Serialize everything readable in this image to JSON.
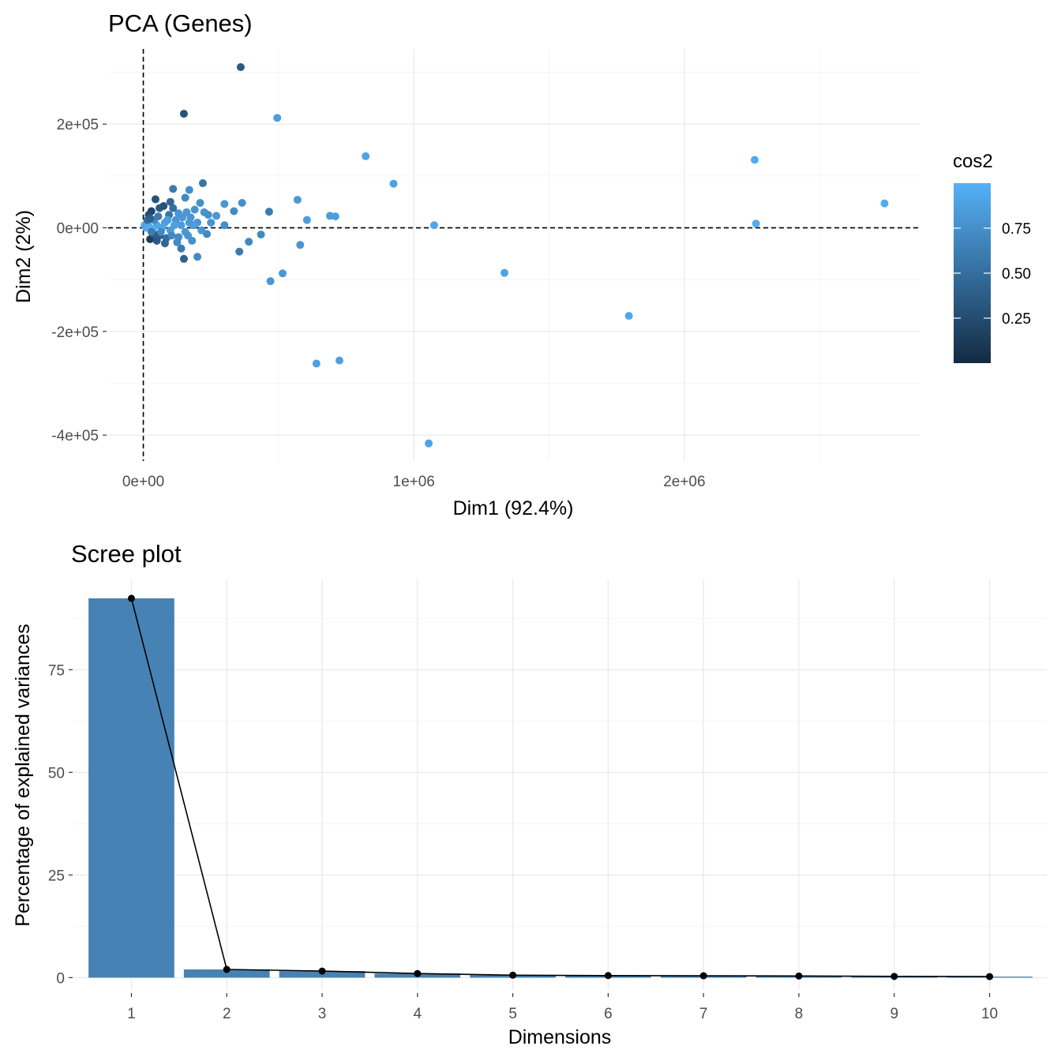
{
  "chart_data": [
    {
      "type": "scatter",
      "title": "PCA (Genes)",
      "xlabel": "Dim1 (92.4%)",
      "ylabel": "Dim2 (2%)",
      "xlim": [
        -130000,
        2870000
      ],
      "ylim": [
        -450000,
        345000
      ],
      "x_ticks": [
        {
          "value": 0,
          "label": "0e+00"
        },
        {
          "value": 1000000,
          "label": "1e+06"
        },
        {
          "value": 2000000,
          "label": "2e+06"
        }
      ],
      "y_ticks": [
        {
          "value": 200000,
          "label": "2e+05"
        },
        {
          "value": 0,
          "label": "0e+00"
        },
        {
          "value": -200000,
          "label": "-2e+05"
        },
        {
          "value": -400000,
          "label": "-4e+05"
        }
      ],
      "reference_lines": {
        "x": 0,
        "y": 0,
        "style": "dashed"
      },
      "grid": true,
      "legend": {
        "title": "cos2",
        "position": "right",
        "type": "colorbar",
        "range": [
          0.0,
          1.0
        ],
        "ticks": [
          {
            "value": 0.25,
            "label": "0.25"
          },
          {
            "value": 0.5,
            "label": "0.50"
          },
          {
            "value": 0.75,
            "label": "0.75"
          }
        ],
        "color_low": "#132B43",
        "color_high": "#56B1F7"
      },
      "points": [
        {
          "x": 360000,
          "y": 310000,
          "cos2": 0.35
        },
        {
          "x": 150000,
          "y": 220000,
          "cos2": 0.3
        },
        {
          "x": 495000,
          "y": 212000,
          "cos2": 0.85
        },
        {
          "x": 822000,
          "y": 138000,
          "cos2": 0.9
        },
        {
          "x": 925000,
          "y": 85000,
          "cos2": 0.88
        },
        {
          "x": 2260000,
          "y": 131000,
          "cos2": 0.95
        },
        {
          "x": 2740000,
          "y": 47000,
          "cos2": 0.95
        },
        {
          "x": 2265000,
          "y": 8000,
          "cos2": 0.95
        },
        {
          "x": 1075000,
          "y": 5000,
          "cos2": 0.92
        },
        {
          "x": 1335000,
          "y": -87000,
          "cos2": 0.9
        },
        {
          "x": 1795000,
          "y": -170000,
          "cos2": 0.92
        },
        {
          "x": 640000,
          "y": -262000,
          "cos2": 0.88
        },
        {
          "x": 725000,
          "y": -256000,
          "cos2": 0.88
        },
        {
          "x": 1055000,
          "y": -416000,
          "cos2": 0.9
        },
        {
          "x": 470000,
          "y": -103000,
          "cos2": 0.8
        },
        {
          "x": 515000,
          "y": -88000,
          "cos2": 0.82
        },
        {
          "x": 580000,
          "y": -33000,
          "cos2": 0.8
        },
        {
          "x": 570000,
          "y": 54000,
          "cos2": 0.82
        },
        {
          "x": 605000,
          "y": 15000,
          "cos2": 0.85
        },
        {
          "x": 690000,
          "y": 23000,
          "cos2": 0.85
        },
        {
          "x": 710000,
          "y": 22000,
          "cos2": 0.86
        },
        {
          "x": 465000,
          "y": 31000,
          "cos2": 0.6
        },
        {
          "x": 435000,
          "y": -13000,
          "cos2": 0.7
        },
        {
          "x": 390000,
          "y": -27000,
          "cos2": 0.7
        },
        {
          "x": 355000,
          "y": -46000,
          "cos2": 0.6
        },
        {
          "x": 365000,
          "y": 48000,
          "cos2": 0.75
        },
        {
          "x": 335000,
          "y": 32000,
          "cos2": 0.72
        },
        {
          "x": 300000,
          "y": 46000,
          "cos2": 0.8
        },
        {
          "x": 300000,
          "y": 5000,
          "cos2": 0.75
        },
        {
          "x": 270000,
          "y": 23000,
          "cos2": 0.8
        },
        {
          "x": 235000,
          "y": -12000,
          "cos2": 0.7
        },
        {
          "x": 220000,
          "y": 86000,
          "cos2": 0.55
        },
        {
          "x": 200000,
          "y": -56000,
          "cos2": 0.72
        },
        {
          "x": 170000,
          "y": 73000,
          "cos2": 0.75
        },
        {
          "x": 155000,
          "y": 58000,
          "cos2": 0.7
        },
        {
          "x": 150000,
          "y": -60000,
          "cos2": 0.4
        },
        {
          "x": 140000,
          "y": -40000,
          "cos2": 0.6
        },
        {
          "x": 110000,
          "y": 75000,
          "cos2": 0.6
        },
        {
          "x": 45000,
          "y": 55000,
          "cos2": 0.3
        },
        {
          "x": 60000,
          "y": 38000,
          "cos2": 0.35
        },
        {
          "x": 75000,
          "y": 42000,
          "cos2": 0.3
        },
        {
          "x": 30000,
          "y": 32000,
          "cos2": 0.2
        },
        {
          "x": 20000,
          "y": 25000,
          "cos2": 0.25
        },
        {
          "x": 15000,
          "y": 10000,
          "cos2": 0.55
        },
        {
          "x": 25000,
          "y": -22000,
          "cos2": 0.15
        },
        {
          "x": 40000,
          "y": -12000,
          "cos2": 0.35
        },
        {
          "x": 60000,
          "y": -15000,
          "cos2": 0.4
        },
        {
          "x": 85000,
          "y": -20000,
          "cos2": 0.5
        },
        {
          "x": 100000,
          "y": -5000,
          "cos2": 0.85
        },
        {
          "x": 120000,
          "y": 15000,
          "cos2": 0.8
        },
        {
          "x": 130000,
          "y": 28000,
          "cos2": 0.8
        },
        {
          "x": 140000,
          "y": 5000,
          "cos2": 0.85
        },
        {
          "x": 155000,
          "y": -8000,
          "cos2": 0.82
        },
        {
          "x": 175000,
          "y": 20000,
          "cos2": 0.8
        },
        {
          "x": 190000,
          "y": 35000,
          "cos2": 0.78
        },
        {
          "x": 210000,
          "y": 48000,
          "cos2": 0.75
        },
        {
          "x": 225000,
          "y": 30000,
          "cos2": 0.78
        },
        {
          "x": 240000,
          "y": 25000,
          "cos2": 0.75
        },
        {
          "x": 200000,
          "y": 10000,
          "cos2": 0.8
        },
        {
          "x": 180000,
          "y": -25000,
          "cos2": 0.75
        },
        {
          "x": 165000,
          "y": -15000,
          "cos2": 0.78
        },
        {
          "x": 125000,
          "y": -28000,
          "cos2": 0.7
        },
        {
          "x": 110000,
          "y": 38000,
          "cos2": 0.5
        },
        {
          "x": 95000,
          "y": 25000,
          "cos2": 0.55
        },
        {
          "x": 80000,
          "y": 10000,
          "cos2": 0.85
        },
        {
          "x": 70000,
          "y": 0,
          "cos2": 0.9
        },
        {
          "x": 50000,
          "y": 5000,
          "cos2": 0.9
        },
        {
          "x": 35000,
          "y": -3000,
          "cos2": 0.95
        },
        {
          "x": 10000,
          "y": 0,
          "cos2": 0.95
        },
        {
          "x": 5000,
          "y": 5000,
          "cos2": 0.9
        },
        {
          "x": 20000,
          "y": 3000,
          "cos2": 0.95
        },
        {
          "x": 40000,
          "y": 15000,
          "cos2": 0.7
        },
        {
          "x": 55000,
          "y": 22000,
          "cos2": 0.6
        },
        {
          "x": 90000,
          "y": 15000,
          "cos2": 0.85
        },
        {
          "x": 105000,
          "y": -15000,
          "cos2": 0.7
        },
        {
          "x": 115000,
          "y": 5000,
          "cos2": 0.88
        },
        {
          "x": 145000,
          "y": 20000,
          "cos2": 0.82
        },
        {
          "x": 160000,
          "y": 30000,
          "cos2": 0.8
        },
        {
          "x": 185000,
          "y": 5000,
          "cos2": 0.85
        },
        {
          "x": 215000,
          "y": -5000,
          "cos2": 0.8
        },
        {
          "x": 250000,
          "y": 10000,
          "cos2": 0.78
        },
        {
          "x": 30000,
          "y": -8000,
          "cos2": 0.6
        },
        {
          "x": 65000,
          "y": -8000,
          "cos2": 0.7
        },
        {
          "x": 80000,
          "y": -30000,
          "cos2": 0.45
        },
        {
          "x": 50000,
          "y": -25000,
          "cos2": 0.35
        },
        {
          "x": 15000,
          "y": 15000,
          "cos2": 0.5
        },
        {
          "x": 25000,
          "y": 18000,
          "cos2": 0.4
        },
        {
          "x": 100000,
          "y": 50000,
          "cos2": 0.45
        },
        {
          "x": 130000,
          "y": -18000,
          "cos2": 0.72
        },
        {
          "x": 170000,
          "y": 10000,
          "cos2": 0.82
        }
      ]
    },
    {
      "type": "bar",
      "title": "Scree plot",
      "xlabel": "Dimensions",
      "ylabel": "Percentage of explained variances",
      "categories": [
        "1",
        "2",
        "3",
        "4",
        "5",
        "6",
        "7",
        "8",
        "9",
        "10"
      ],
      "values": [
        92.4,
        2.0,
        1.6,
        1.0,
        0.6,
        0.5,
        0.45,
        0.4,
        0.3,
        0.25
      ],
      "ylim": [
        -3,
        97
      ],
      "y_ticks": [
        {
          "value": 0,
          "label": "0"
        },
        {
          "value": 25,
          "label": "25"
        },
        {
          "value": 50,
          "label": "50"
        },
        {
          "value": 75,
          "label": "75"
        }
      ],
      "bar_color": "#4682B4",
      "line_color": "#000000",
      "grid": true
    }
  ]
}
